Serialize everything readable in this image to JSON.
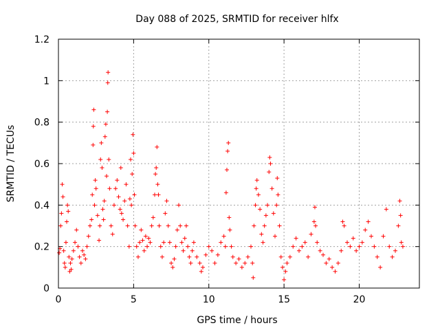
{
  "chart_data": {
    "type": "scatter",
    "title": "Day 088 of 2025, SRMTID for receiver hlfx",
    "xlabel": "GPS time / hours",
    "ylabel": "SRMTID / TECUs",
    "xlim": [
      0,
      24
    ],
    "ylim": [
      0,
      1.2
    ],
    "xticks": [
      0,
      5,
      10,
      15,
      20
    ],
    "yticks": [
      0,
      0.2,
      0.4,
      0.6,
      0.8,
      1,
      1.2
    ],
    "xtick_labels": [
      "0",
      "5",
      "10",
      "15",
      "20"
    ],
    "ytick_labels": [
      "0",
      "0.2",
      "0.4",
      "0.6",
      "0.8",
      "1",
      "1.2"
    ],
    "grid": true,
    "marker": "plus",
    "marker_color": "#ff0000",
    "series": [
      {
        "name": "SRMTID",
        "points": [
          [
            0.05,
            0.17
          ],
          [
            0.1,
            0.19
          ],
          [
            0.15,
            0.3
          ],
          [
            0.2,
            0.36
          ],
          [
            0.25,
            0.5
          ],
          [
            0.3,
            0.44
          ],
          [
            0.35,
            0.18
          ],
          [
            0.4,
            0.12
          ],
          [
            0.45,
            0.1
          ],
          [
            0.5,
            0.22
          ],
          [
            0.55,
            0.32
          ],
          [
            0.6,
            0.4
          ],
          [
            0.65,
            0.37
          ],
          [
            0.7,
            0.15
          ],
          [
            0.75,
            0.08
          ],
          [
            0.8,
            0.12
          ],
          [
            0.85,
            0.09
          ],
          [
            0.9,
            0.14
          ],
          [
            1.0,
            0.18
          ],
          [
            1.1,
            0.22
          ],
          [
            1.2,
            0.28
          ],
          [
            1.3,
            0.2
          ],
          [
            1.4,
            0.15
          ],
          [
            1.5,
            0.12
          ],
          [
            1.6,
            0.18
          ],
          [
            1.7,
            0.16
          ],
          [
            1.8,
            0.14
          ],
          [
            1.9,
            0.2
          ],
          [
            2.0,
            0.25
          ],
          [
            2.1,
            0.3
          ],
          [
            2.2,
            0.33
          ],
          [
            2.25,
            0.45
          ],
          [
            2.3,
            0.69
          ],
          [
            2.32,
            0.78
          ],
          [
            2.35,
            0.86
          ],
          [
            2.4,
            0.4
          ],
          [
            2.45,
            0.52
          ],
          [
            2.5,
            0.48
          ],
          [
            2.6,
            0.35
          ],
          [
            2.7,
            0.23
          ],
          [
            2.75,
            0.3
          ],
          [
            2.8,
            0.62
          ],
          [
            2.85,
            0.7
          ],
          [
            2.9,
            0.58
          ],
          [
            2.95,
            0.38
          ],
          [
            3.0,
            0.33
          ],
          [
            3.05,
            0.42
          ],
          [
            3.1,
            0.73
          ],
          [
            3.15,
            0.79
          ],
          [
            3.2,
            0.54
          ],
          [
            3.25,
            0.85
          ],
          [
            3.28,
            0.99
          ],
          [
            3.3,
            1.04
          ],
          [
            3.35,
            0.62
          ],
          [
            3.4,
            0.48
          ],
          [
            3.5,
            0.3
          ],
          [
            3.6,
            0.26
          ],
          [
            3.7,
            0.4
          ],
          [
            3.8,
            0.48
          ],
          [
            3.9,
            0.52
          ],
          [
            4.0,
            0.44
          ],
          [
            4.1,
            0.38
          ],
          [
            4.15,
            0.58
          ],
          [
            4.2,
            0.36
          ],
          [
            4.3,
            0.33
          ],
          [
            4.4,
            0.42
          ],
          [
            4.5,
            0.5
          ],
          [
            4.6,
            0.3
          ],
          [
            4.7,
            0.2
          ],
          [
            4.75,
            0.43
          ],
          [
            4.8,
            0.62
          ],
          [
            4.85,
            0.4
          ],
          [
            4.9,
            0.55
          ],
          [
            4.95,
            0.74
          ],
          [
            5.0,
            0.65
          ],
          [
            5.05,
            0.45
          ],
          [
            5.1,
            0.3
          ],
          [
            5.2,
            0.2
          ],
          [
            5.3,
            0.15
          ],
          [
            5.4,
            0.22
          ],
          [
            5.5,
            0.28
          ],
          [
            5.6,
            0.23
          ],
          [
            5.7,
            0.18
          ],
          [
            5.8,
            0.25
          ],
          [
            5.9,
            0.2
          ],
          [
            6.0,
            0.24
          ],
          [
            6.1,
            0.22
          ],
          [
            6.2,
            0.3
          ],
          [
            6.3,
            0.34
          ],
          [
            6.4,
            0.45
          ],
          [
            6.45,
            0.55
          ],
          [
            6.5,
            0.58
          ],
          [
            6.55,
            0.68
          ],
          [
            6.6,
            0.5
          ],
          [
            6.65,
            0.45
          ],
          [
            6.7,
            0.3
          ],
          [
            6.8,
            0.2
          ],
          [
            6.9,
            0.15
          ],
          [
            7.0,
            0.22
          ],
          [
            7.1,
            0.36
          ],
          [
            7.2,
            0.42
          ],
          [
            7.3,
            0.3
          ],
          [
            7.4,
            0.22
          ],
          [
            7.5,
            0.12
          ],
          [
            7.6,
            0.1
          ],
          [
            7.7,
            0.14
          ],
          [
            7.8,
            0.2
          ],
          [
            7.9,
            0.28
          ],
          [
            8.0,
            0.4
          ],
          [
            8.1,
            0.3
          ],
          [
            8.2,
            0.22
          ],
          [
            8.3,
            0.18
          ],
          [
            8.4,
            0.24
          ],
          [
            8.5,
            0.3
          ],
          [
            8.6,
            0.2
          ],
          [
            8.7,
            0.15
          ],
          [
            8.8,
            0.12
          ],
          [
            8.9,
            0.18
          ],
          [
            9.0,
            0.22
          ],
          [
            9.2,
            0.15
          ],
          [
            9.4,
            0.12
          ],
          [
            9.5,
            0.08
          ],
          [
            9.6,
            0.1
          ],
          [
            9.8,
            0.16
          ],
          [
            10.0,
            0.2
          ],
          [
            10.2,
            0.18
          ],
          [
            10.4,
            0.12
          ],
          [
            10.6,
            0.16
          ],
          [
            10.8,
            0.22
          ],
          [
            11.0,
            0.25
          ],
          [
            11.1,
            0.2
          ],
          [
            11.15,
            0.46
          ],
          [
            11.2,
            0.57
          ],
          [
            11.25,
            0.66
          ],
          [
            11.3,
            0.7
          ],
          [
            11.35,
            0.34
          ],
          [
            11.4,
            0.28
          ],
          [
            11.5,
            0.2
          ],
          [
            11.6,
            0.15
          ],
          [
            11.8,
            0.12
          ],
          [
            12.0,
            0.14
          ],
          [
            12.2,
            0.1
          ],
          [
            12.4,
            0.12
          ],
          [
            12.6,
            0.15
          ],
          [
            12.8,
            0.2
          ],
          [
            12.9,
            0.12
          ],
          [
            12.95,
            0.05
          ],
          [
            13.0,
            0.3
          ],
          [
            13.1,
            0.4
          ],
          [
            13.15,
            0.48
          ],
          [
            13.2,
            0.52
          ],
          [
            13.3,
            0.45
          ],
          [
            13.4,
            0.38
          ],
          [
            13.5,
            0.26
          ],
          [
            13.6,
            0.22
          ],
          [
            13.7,
            0.3
          ],
          [
            13.8,
            0.35
          ],
          [
            13.9,
            0.4
          ],
          [
            14.0,
            0.56
          ],
          [
            14.05,
            0.63
          ],
          [
            14.1,
            0.6
          ],
          [
            14.2,
            0.48
          ],
          [
            14.3,
            0.36
          ],
          [
            14.4,
            0.25
          ],
          [
            14.5,
            0.4
          ],
          [
            14.55,
            0.53
          ],
          [
            14.6,
            0.45
          ],
          [
            14.7,
            0.3
          ],
          [
            14.8,
            0.15
          ],
          [
            14.9,
            0.1
          ],
          [
            15.0,
            0.04
          ],
          [
            15.1,
            0.08
          ],
          [
            15.2,
            0.12
          ],
          [
            15.4,
            0.15
          ],
          [
            15.6,
            0.2
          ],
          [
            15.8,
            0.24
          ],
          [
            16.0,
            0.18
          ],
          [
            16.2,
            0.2
          ],
          [
            16.4,
            0.22
          ],
          [
            16.6,
            0.15
          ],
          [
            16.8,
            0.26
          ],
          [
            17.0,
            0.32
          ],
          [
            17.05,
            0.39
          ],
          [
            17.1,
            0.3
          ],
          [
            17.2,
            0.22
          ],
          [
            17.4,
            0.18
          ],
          [
            17.6,
            0.16
          ],
          [
            17.8,
            0.12
          ],
          [
            18.0,
            0.14
          ],
          [
            18.2,
            0.1
          ],
          [
            18.4,
            0.08
          ],
          [
            18.6,
            0.12
          ],
          [
            18.8,
            0.18
          ],
          [
            18.9,
            0.32
          ],
          [
            19.0,
            0.3
          ],
          [
            19.2,
            0.22
          ],
          [
            19.4,
            0.2
          ],
          [
            19.6,
            0.24
          ],
          [
            19.8,
            0.18
          ],
          [
            20.0,
            0.2
          ],
          [
            20.2,
            0.22
          ],
          [
            20.4,
            0.28
          ],
          [
            20.6,
            0.32
          ],
          [
            20.8,
            0.25
          ],
          [
            21.0,
            0.2
          ],
          [
            21.2,
            0.15
          ],
          [
            21.4,
            0.1
          ],
          [
            21.6,
            0.25
          ],
          [
            21.8,
            0.38
          ],
          [
            22.0,
            0.2
          ],
          [
            22.2,
            0.15
          ],
          [
            22.4,
            0.18
          ],
          [
            22.6,
            0.3
          ],
          [
            22.7,
            0.42
          ],
          [
            22.75,
            0.35
          ],
          [
            22.8,
            0.22
          ],
          [
            22.9,
            0.2
          ]
        ]
      }
    ]
  }
}
